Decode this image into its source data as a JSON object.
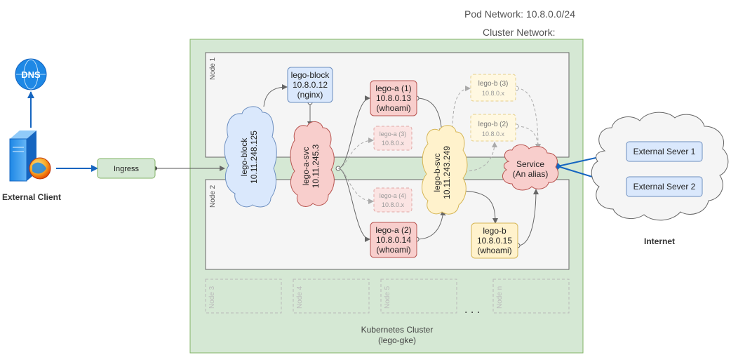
{
  "header": {
    "pod_network": "Pod Network: 10.8.0.0/24",
    "cluster_network": "Cluster Network:"
  },
  "cluster": {
    "title_line1": "Kubernetes Cluster",
    "title_line2": "(lego-gke)"
  },
  "nodes": {
    "node1": "Node 1",
    "node2": "Node 2",
    "node3": "Node 3",
    "node4": "Node 4",
    "node5": "Node 5",
    "noden": "Node n",
    "ellipsis": ". . ."
  },
  "client": {
    "label": "External Client",
    "dns": "DNS"
  },
  "ingress": {
    "label": "Ingress"
  },
  "lego_block_svc": {
    "line1": "lego-block",
    "line2": "10.11.248.125"
  },
  "lego_block_pod": {
    "line1": "lego-block",
    "line2": "10.8.0.12",
    "line3": "(nginx)"
  },
  "lego_a_svc": {
    "line1": "lego-a-svc",
    "line2": "10.11.245.3"
  },
  "lego_a1": {
    "line1": "lego-a (1)",
    "line2": "10.8.0.13",
    "line3": "(whoami)"
  },
  "lego_a2": {
    "line1": "lego-a (2)",
    "line2": "10.8.0.14",
    "line3": "(whoami)"
  },
  "lego_a3": {
    "line1": "lego-a (3)",
    "line2": "10.8.0.x"
  },
  "lego_a4": {
    "line1": "lego-a (4)",
    "line2": "10.8.0.x"
  },
  "lego_b_svc": {
    "line1": "lego-b-svc",
    "line2": "10.11.243.249"
  },
  "lego_b": {
    "line1": "lego-b",
    "line2": "10.8.0.15",
    "line3": "(whoami)"
  },
  "lego_b2": {
    "line1": "lego-b (2)",
    "line2": "10.8.0.x"
  },
  "lego_b3": {
    "line1": "lego-b (3)",
    "line2": "10.8.0.x"
  },
  "service": {
    "line1": "Service",
    "line2": "(An alias)"
  },
  "internet": {
    "label": "Internet",
    "server1": "External Sever 1",
    "server2": "External Sever 2"
  },
  "colors": {
    "cluster_fill": "#d5e8d4",
    "cluster_stroke": "#82b366",
    "blue_fill": "#dae8fc",
    "blue_stroke": "#6c8ebf",
    "red_fill": "#f8cecc",
    "red_stroke": "#b85450",
    "yellow_fill": "#fff2cc",
    "yellow_stroke": "#d6b656",
    "arrow_blue": "#1565c0"
  }
}
